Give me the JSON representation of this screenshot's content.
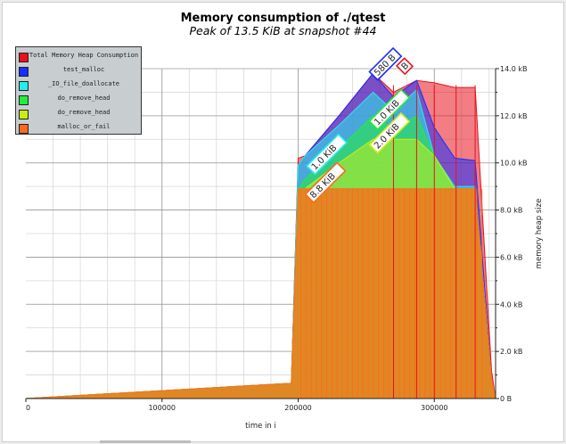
{
  "title": "Memory consumption of ./qtest",
  "subtitle": "Peak of 13.5 KiB at snapshot #44",
  "chart_data": {
    "type": "area",
    "xlabel": "time in i",
    "ylabel": "memory heap size",
    "xlim": [
      0,
      345000
    ],
    "ylim": [
      0,
      14.0
    ],
    "x_ticks": [
      0,
      100000,
      200000,
      300000
    ],
    "x_tick_labels": [
      "0",
      "100000",
      "200000",
      "300000"
    ],
    "y_ticks": [
      0,
      2,
      4,
      6,
      8,
      10,
      12,
      14
    ],
    "y_tick_labels": [
      "0 B",
      "2.0 kB",
      "4.0 kB",
      "6.0 kB",
      "8.0 kB",
      "10.0 kB",
      "12.0 kB",
      "14.0 kB"
    ],
    "grid": true,
    "legend_position": "top-left",
    "x": [
      0,
      195000,
      200000,
      205000,
      230000,
      255000,
      270000,
      287000,
      300000,
      315000,
      330000,
      342000,
      345000
    ],
    "series": [
      {
        "name": "malloc_or_fail",
        "color": "#ff6a1a",
        "values": [
          0,
          0.65,
          8.9,
          8.9,
          8.9,
          8.9,
          8.9,
          8.9,
          8.9,
          8.9,
          8.9,
          0.8,
          0
        ]
      },
      {
        "name": "do_remove_head",
        "color": "#c6ee16",
        "values": [
          0,
          0.65,
          8.9,
          8.9,
          10.0,
          11.0,
          11.0,
          11.0,
          10.3,
          8.9,
          8.9,
          0.8,
          0
        ]
      },
      {
        "name": "do_remove_head",
        "color": "#22ee3a",
        "values": [
          0,
          0.65,
          8.9,
          9.3,
          10.6,
          12.0,
          11.4,
          12.0,
          10.3,
          8.9,
          8.9,
          0.8,
          0
        ]
      },
      {
        "name": "_IO_file_doallocate",
        "color": "#22eeee",
        "values": [
          0,
          0.65,
          9.9,
          10.3,
          11.6,
          13.0,
          12.2,
          13.1,
          10.3,
          9.0,
          9.0,
          0.8,
          0
        ]
      },
      {
        "name": "test_malloc",
        "color": "#1a2cff",
        "values": [
          0,
          0.65,
          9.9,
          10.3,
          12.0,
          13.8,
          12.8,
          13.5,
          11.5,
          10.2,
          10.1,
          0.8,
          0
        ]
      },
      {
        "name": "Total Memory Heap Consumption",
        "color": "#e8121c",
        "values": [
          0,
          0.65,
          10.2,
          10.3,
          12.0,
          13.8,
          13.0,
          13.5,
          13.4,
          13.2,
          13.2,
          1.2,
          0
        ]
      }
    ],
    "peak_annotations": [
      {
        "text": "1.0 KiB",
        "color": "#22eeee",
        "x": 211000,
        "y": 9.6
      },
      {
        "text": "8.8 KiB",
        "color": "#ff6a1a",
        "x": 210000,
        "y": 8.4
      },
      {
        "text": "1.0 KiB",
        "color": "#22ee3a",
        "x": 257000,
        "y": 11.5
      },
      {
        "text": "2.0 KiB",
        "color": "#c6ee16",
        "x": 257000,
        "y": 10.5
      },
      {
        "text": "580 B",
        "color": "#1a2cff",
        "x": 257000,
        "y": 13.6
      },
      {
        "text": "B",
        "color": "#e8121c",
        "x": 277000,
        "y": 13.85
      }
    ]
  }
}
